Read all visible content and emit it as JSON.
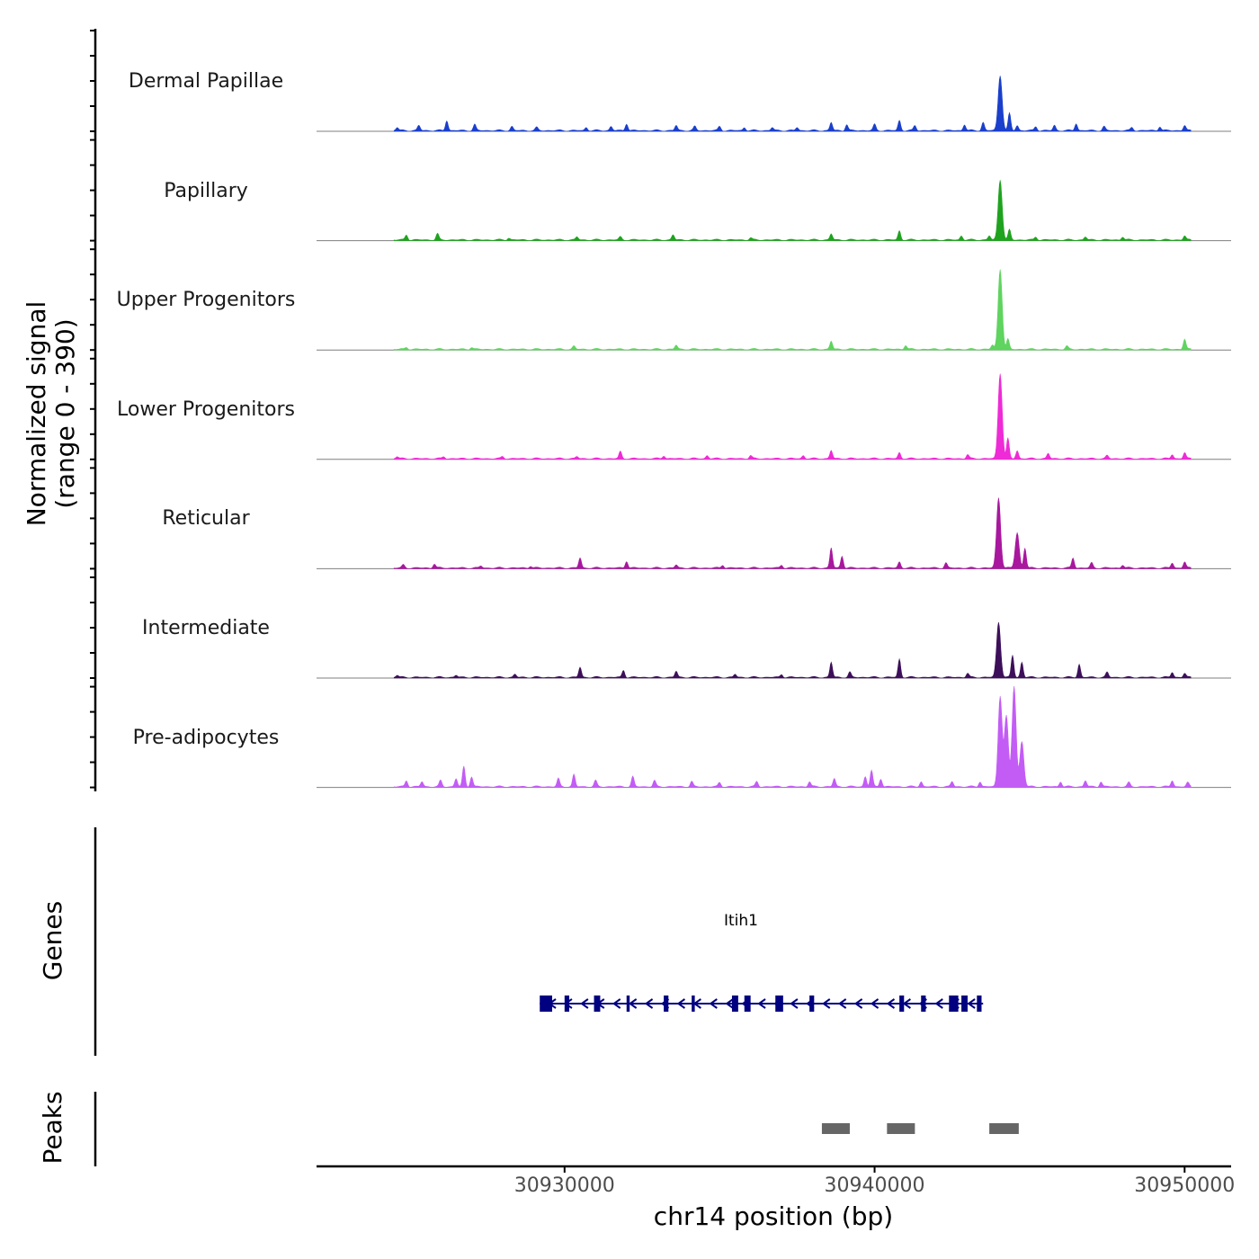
{
  "chart_data": {
    "type": "coverage",
    "ylabel": "Normalized signal",
    "ylabel_range": "(range 0 - 390)",
    "xlabel": "chr14 position (bp)",
    "xlim": [
      30922000,
      30951500
    ],
    "xticks": [
      30930000,
      30940000,
      30950000
    ],
    "xtick_labels": [
      "30930000",
      "30940000",
      "30950000"
    ],
    "ylim": [
      0,
      390
    ],
    "tracks": [
      {
        "name": "Dermal Papillae",
        "color": "#1a3fcc",
        "peaks": [
          [
            30924600,
            0.03
          ],
          [
            30925300,
            0.05
          ],
          [
            30926200,
            0.1
          ],
          [
            30927100,
            0.06
          ],
          [
            30928300,
            0.04
          ],
          [
            30929100,
            0.03
          ],
          [
            30930700,
            0.03
          ],
          [
            30931500,
            0.04
          ],
          [
            30932000,
            0.07
          ],
          [
            30933600,
            0.05
          ],
          [
            30934200,
            0.04
          ],
          [
            30935000,
            0.04
          ],
          [
            30935800,
            0.03
          ],
          [
            30936700,
            0.03
          ],
          [
            30937500,
            0.03
          ],
          [
            30938600,
            0.08
          ],
          [
            30939100,
            0.06
          ],
          [
            30940000,
            0.06
          ],
          [
            30940800,
            0.1
          ],
          [
            30941300,
            0.05
          ],
          [
            30942900,
            0.06
          ],
          [
            30943500,
            0.08
          ],
          [
            30944050,
            0.55
          ],
          [
            30944350,
            0.17
          ],
          [
            30944600,
            0.05
          ],
          [
            30945200,
            0.04
          ],
          [
            30945800,
            0.05
          ],
          [
            30946500,
            0.07
          ],
          [
            30947400,
            0.04
          ],
          [
            30948300,
            0.03
          ],
          [
            30949200,
            0.04
          ],
          [
            30950000,
            0.05
          ]
        ]
      },
      {
        "name": "Papillary",
        "color": "#1fa31f",
        "peaks": [
          [
            30924900,
            0.05
          ],
          [
            30925900,
            0.06
          ],
          [
            30928200,
            0.02
          ],
          [
            30930400,
            0.03
          ],
          [
            30931800,
            0.03
          ],
          [
            30933500,
            0.05
          ],
          [
            30936000,
            0.02
          ],
          [
            30938600,
            0.06
          ],
          [
            30940800,
            0.09
          ],
          [
            30942800,
            0.04
          ],
          [
            30943700,
            0.04
          ],
          [
            30944050,
            0.6
          ],
          [
            30944350,
            0.1
          ],
          [
            30945200,
            0.03
          ],
          [
            30946800,
            0.03
          ],
          [
            30948000,
            0.03
          ],
          [
            30950000,
            0.04
          ]
        ]
      },
      {
        "name": "Upper Progenitors",
        "color": "#5fd45f",
        "peaks": [
          [
            30924900,
            0.02
          ],
          [
            30927000,
            0.02
          ],
          [
            30930300,
            0.03
          ],
          [
            30933600,
            0.04
          ],
          [
            30938600,
            0.08
          ],
          [
            30941000,
            0.04
          ],
          [
            30943800,
            0.04
          ],
          [
            30944050,
            0.8
          ],
          [
            30944300,
            0.1
          ],
          [
            30946200,
            0.03
          ],
          [
            30950000,
            0.1
          ]
        ]
      },
      {
        "name": "Lower Progenitors",
        "color": "#ee2bd6",
        "peaks": [
          [
            30924600,
            0.02
          ],
          [
            30926100,
            0.02
          ],
          [
            30928000,
            0.02
          ],
          [
            30930400,
            0.02
          ],
          [
            30931800,
            0.07
          ],
          [
            30933200,
            0.03
          ],
          [
            30934600,
            0.03
          ],
          [
            30936000,
            0.03
          ],
          [
            30937700,
            0.03
          ],
          [
            30938600,
            0.08
          ],
          [
            30940800,
            0.06
          ],
          [
            30943000,
            0.04
          ],
          [
            30944050,
            0.85
          ],
          [
            30944300,
            0.2
          ],
          [
            30944600,
            0.08
          ],
          [
            30945600,
            0.05
          ],
          [
            30947500,
            0.03
          ],
          [
            30949600,
            0.04
          ],
          [
            30950000,
            0.06
          ]
        ]
      },
      {
        "name": "Reticular",
        "color": "#a8179e",
        "peaks": [
          [
            30924800,
            0.03
          ],
          [
            30925800,
            0.04
          ],
          [
            30927300,
            0.02
          ],
          [
            30928900,
            0.02
          ],
          [
            30930500,
            0.1
          ],
          [
            30932000,
            0.07
          ],
          [
            30933600,
            0.03
          ],
          [
            30935100,
            0.03
          ],
          [
            30937000,
            0.03
          ],
          [
            30938600,
            0.2
          ],
          [
            30938950,
            0.12
          ],
          [
            30940800,
            0.06
          ],
          [
            30942300,
            0.05
          ],
          [
            30944000,
            0.7
          ],
          [
            30944600,
            0.35
          ],
          [
            30944850,
            0.2
          ],
          [
            30946400,
            0.1
          ],
          [
            30947000,
            0.05
          ],
          [
            30948000,
            0.03
          ],
          [
            30949600,
            0.05
          ],
          [
            30950000,
            0.06
          ]
        ]
      },
      {
        "name": "Intermediate",
        "color": "#3d0f5a",
        "peaks": [
          [
            30924600,
            0.02
          ],
          [
            30926500,
            0.02
          ],
          [
            30928400,
            0.03
          ],
          [
            30930500,
            0.1
          ],
          [
            30931900,
            0.07
          ],
          [
            30933600,
            0.06
          ],
          [
            30935500,
            0.03
          ],
          [
            30937000,
            0.03
          ],
          [
            30938600,
            0.15
          ],
          [
            30939200,
            0.05
          ],
          [
            30940800,
            0.18
          ],
          [
            30943000,
            0.04
          ],
          [
            30944000,
            0.55
          ],
          [
            30944450,
            0.22
          ],
          [
            30944750,
            0.15
          ],
          [
            30946600,
            0.13
          ],
          [
            30947500,
            0.05
          ],
          [
            30949600,
            0.05
          ],
          [
            30950000,
            0.04
          ]
        ]
      },
      {
        "name": "Pre-adipocytes",
        "color": "#c35cf5",
        "peaks": [
          [
            30924900,
            0.06
          ],
          [
            30925400,
            0.05
          ],
          [
            30926000,
            0.06
          ],
          [
            30926500,
            0.08
          ],
          [
            30926750,
            0.2
          ],
          [
            30927000,
            0.1
          ],
          [
            30929800,
            0.08
          ],
          [
            30930300,
            0.12
          ],
          [
            30931000,
            0.06
          ],
          [
            30932200,
            0.1
          ],
          [
            30932900,
            0.06
          ],
          [
            30934100,
            0.05
          ],
          [
            30935000,
            0.04
          ],
          [
            30936200,
            0.05
          ],
          [
            30937900,
            0.05
          ],
          [
            30938700,
            0.08
          ],
          [
            30939700,
            0.1
          ],
          [
            30939900,
            0.16
          ],
          [
            30940200,
            0.08
          ],
          [
            30941500,
            0.05
          ],
          [
            30942500,
            0.05
          ],
          [
            30943400,
            0.05
          ],
          [
            30944050,
            0.9
          ],
          [
            30944250,
            0.7
          ],
          [
            30944500,
            1.0
          ],
          [
            30944750,
            0.45
          ],
          [
            30946000,
            0.05
          ],
          [
            30946800,
            0.06
          ],
          [
            30947300,
            0.05
          ],
          [
            30948200,
            0.04
          ],
          [
            30949600,
            0.06
          ],
          [
            30950100,
            0.04
          ]
        ]
      }
    ],
    "gene": {
      "name": "Itih1",
      "strand": "-",
      "start": 30929200,
      "end": 30943500,
      "exons": [
        [
          30929200,
          30929600
        ],
        [
          30930000,
          30930150
        ],
        [
          30930950,
          30931150
        ],
        [
          30932000,
          30932100
        ],
        [
          30933200,
          30933350
        ],
        [
          30934100,
          30934200
        ],
        [
          30935400,
          30935600
        ],
        [
          30935800,
          30936000
        ],
        [
          30936800,
          30937050
        ],
        [
          30937900,
          30938050
        ],
        [
          30940800,
          30940950
        ],
        [
          30941500,
          30941650
        ],
        [
          30942400,
          30942700
        ],
        [
          30942800,
          30943000
        ],
        [
          30943300,
          30943450
        ]
      ],
      "color": "#000080"
    },
    "peak_regions": [
      [
        30938300,
        30939200
      ],
      [
        30940400,
        30941300
      ],
      [
        30943700,
        30944650
      ]
    ],
    "peak_color": "#666666"
  }
}
